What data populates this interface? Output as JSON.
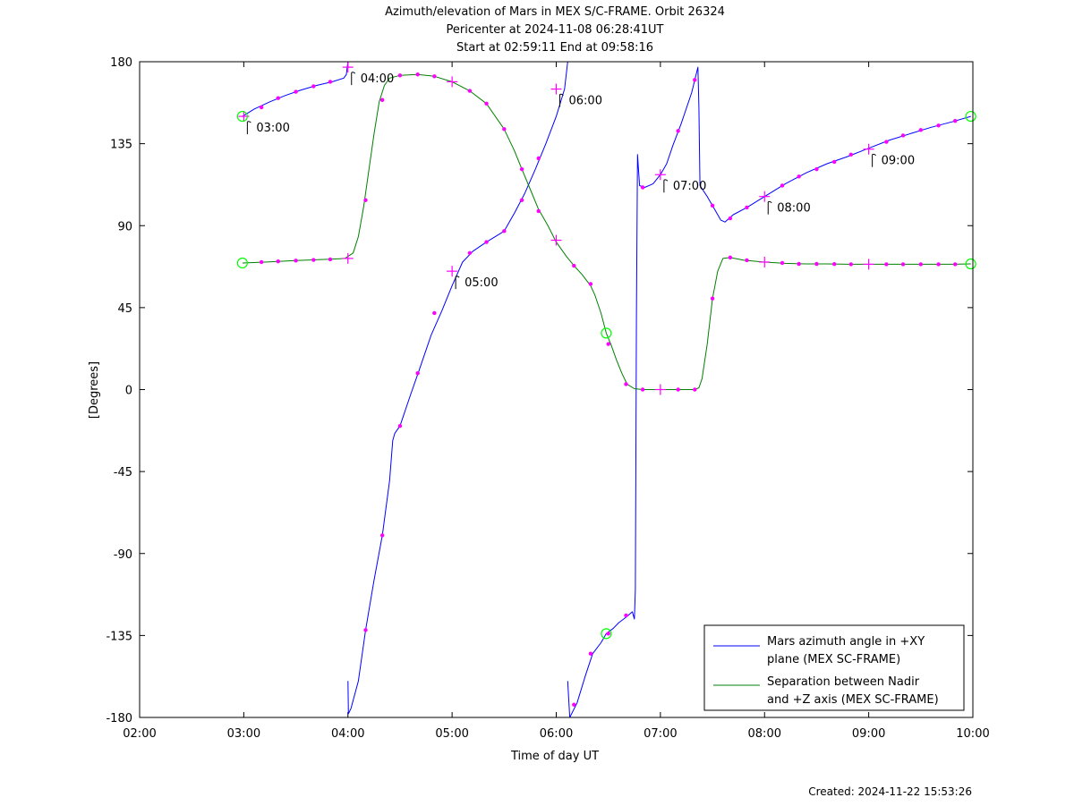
{
  "chart_data": {
    "type": "line",
    "title_lines": [
      "Azimuth/elevation of Mars in MEX S/C-FRAME.  Orbit 26324",
      "Pericenter at 2024-11-08 06:28:41UT",
      "Start at 02:59:11 End at 09:58:16"
    ],
    "xlabel": "Time of day UT",
    "ylabel": "[Degrees]",
    "footer": "Created: 2024-11-22 15:53:26",
    "xlim": [
      2.0,
      10.0
    ],
    "ylim": [
      -180,
      180
    ],
    "xticks": [
      {
        "v": 2.0,
        "label": "02:00"
      },
      {
        "v": 3.0,
        "label": "03:00"
      },
      {
        "v": 4.0,
        "label": "04:00"
      },
      {
        "v": 5.0,
        "label": "05:00"
      },
      {
        "v": 6.0,
        "label": "06:00"
      },
      {
        "v": 7.0,
        "label": "07:00"
      },
      {
        "v": 8.0,
        "label": "08:00"
      },
      {
        "v": 9.0,
        "label": "09:00"
      },
      {
        "v": 10.0,
        "label": "10:00"
      }
    ],
    "yticks": [
      {
        "v": 180,
        "label": "180"
      },
      {
        "v": 135,
        "label": "135"
      },
      {
        "v": 90,
        "label": "90"
      },
      {
        "v": 45,
        "label": "45"
      },
      {
        "v": 0,
        "label": "0"
      },
      {
        "v": -45,
        "label": "-45"
      },
      {
        "v": -90,
        "label": "-90"
      },
      {
        "v": -135,
        "label": "-135"
      },
      {
        "v": -180,
        "label": "-180"
      }
    ],
    "grid": false,
    "legend_position": "bottom-right",
    "colors": {
      "azimuth": "#0000ff",
      "separation": "#008000",
      "markers": "#ff00ff",
      "circles": "#00ff00"
    },
    "series": [
      {
        "name": "Mars azimuth angle in +XY\nplane (MEX SC-FRAME)",
        "legend_lines": [
          "Mars azimuth angle in +XY",
          "plane (MEX SC-FRAME)"
        ],
        "color": "#0000ff",
        "segments": [
          [
            [
              2.987,
              150
            ],
            [
              3.1,
              154
            ],
            [
              3.25,
              158
            ],
            [
              3.4,
              161.5
            ],
            [
              3.55,
              164.5
            ],
            [
              3.7,
              167
            ],
            [
              3.85,
              169
            ],
            [
              3.96,
              171
            ],
            [
              3.985,
              173
            ],
            [
              3.995,
              178
            ],
            [
              4.0,
              180
            ]
          ],
          [
            [
              4.0,
              -160
            ],
            [
              4.005,
              -178
            ],
            [
              4.03,
              -175
            ],
            [
              4.1,
              -160
            ],
            [
              4.17,
              -132
            ],
            [
              4.25,
              -105
            ],
            [
              4.33,
              -80
            ],
            [
              4.4,
              -50
            ],
            [
              4.43,
              -28
            ],
            [
              4.45,
              -24
            ],
            [
              4.5,
              -20
            ],
            [
              4.6,
              -3
            ],
            [
              4.68,
              10
            ],
            [
              4.8,
              30
            ],
            [
              4.9,
              43
            ],
            [
              5.0,
              57
            ],
            [
              5.1,
              70
            ],
            [
              5.2,
              76
            ],
            [
              5.33,
              81
            ],
            [
              5.5,
              87
            ],
            [
              5.6,
              97
            ],
            [
              5.7,
              108
            ],
            [
              5.8,
              121
            ],
            [
              5.9,
              135
            ],
            [
              6.0,
              150
            ],
            [
              6.08,
              165
            ],
            [
              6.11,
              180
            ]
          ],
          [
            [
              6.11,
              -160
            ],
            [
              6.13,
              -180
            ],
            [
              6.2,
              -172
            ],
            [
              6.28,
              -157
            ],
            [
              6.35,
              -145
            ],
            [
              6.43,
              -139
            ],
            [
              6.48,
              -134
            ],
            [
              6.55,
              -131
            ],
            [
              6.6,
              -128
            ],
            [
              6.67,
              -125
            ],
            [
              6.73,
              -122
            ],
            [
              6.75,
              -126
            ],
            [
              6.76,
              -110
            ],
            [
              6.77,
              40
            ],
            [
              6.78,
              129
            ],
            [
              6.8,
              112
            ],
            [
              6.85,
              111
            ],
            [
              6.93,
              113
            ],
            [
              7.0,
              118
            ],
            [
              7.06,
              124
            ],
            [
              7.12,
              134
            ],
            [
              7.2,
              146
            ],
            [
              7.3,
              163
            ],
            [
              7.33,
              170
            ],
            [
              7.36,
              177
            ],
            [
              7.37,
              155
            ],
            [
              7.38,
              112
            ],
            [
              7.45,
              106
            ],
            [
              7.5,
              101
            ],
            [
              7.58,
              93
            ],
            [
              7.62,
              92
            ],
            [
              7.7,
              96
            ],
            [
              7.83,
              100
            ],
            [
              8.0,
              106
            ],
            [
              8.2,
              113
            ],
            [
              8.4,
              119
            ],
            [
              8.6,
              124
            ],
            [
              8.8,
              128
            ],
            [
              9.0,
              132.5
            ],
            [
              9.2,
              137
            ],
            [
              9.4,
              140.5
            ],
            [
              9.6,
              144
            ],
            [
              9.8,
              147
            ],
            [
              9.98,
              150
            ]
          ]
        ]
      },
      {
        "name": "Separation between Nadir\nand +Z axis (MEX SC-FRAME)",
        "legend_lines": [
          "Separation between Nadir",
          "and +Z axis (MEX SC-FRAME)"
        ],
        "color": "#008000",
        "segments": [
          [
            [
              2.987,
              69.5
            ],
            [
              3.2,
              70
            ],
            [
              3.5,
              70.8
            ],
            [
              3.8,
              71.5
            ],
            [
              3.97,
              72
            ],
            [
              4.05,
              75
            ],
            [
              4.1,
              84
            ],
            [
              4.15,
              100
            ],
            [
              4.2,
              120
            ],
            [
              4.25,
              140
            ],
            [
              4.3,
              158
            ],
            [
              4.35,
              167
            ],
            [
              4.4,
              171
            ],
            [
              4.5,
              172.5
            ],
            [
              4.67,
              173
            ],
            [
              4.83,
              172
            ],
            [
              5.0,
              169
            ],
            [
              5.17,
              164
            ],
            [
              5.33,
              157
            ],
            [
              5.5,
              143
            ],
            [
              5.6,
              131
            ],
            [
              5.67,
              121
            ],
            [
              5.75,
              110
            ],
            [
              5.83,
              99
            ],
            [
              5.92,
              90
            ],
            [
              6.0,
              81
            ],
            [
              6.1,
              73
            ],
            [
              6.17,
              68
            ],
            [
              6.25,
              63
            ],
            [
              6.33,
              57
            ],
            [
              6.37,
              52
            ],
            [
              6.43,
              42
            ],
            [
              6.48,
              31
            ],
            [
              6.53,
              24
            ],
            [
              6.58,
              16
            ],
            [
              6.63,
              9
            ],
            [
              6.68,
              3
            ],
            [
              6.75,
              0.5
            ],
            [
              6.83,
              0
            ],
            [
              7.0,
              0
            ],
            [
              7.2,
              0
            ],
            [
              7.33,
              0
            ],
            [
              7.37,
              1
            ],
            [
              7.4,
              6
            ],
            [
              7.45,
              25
            ],
            [
              7.5,
              50
            ],
            [
              7.55,
              65
            ],
            [
              7.6,
              72
            ],
            [
              7.67,
              72.5
            ],
            [
              7.8,
              71
            ],
            [
              8.0,
              70
            ],
            [
              8.2,
              69.3
            ],
            [
              8.4,
              69
            ],
            [
              8.6,
              69
            ],
            [
              8.8,
              68.8
            ],
            [
              9.0,
              68.8
            ],
            [
              9.2,
              68.8
            ],
            [
              9.4,
              68.8
            ],
            [
              9.6,
              68.8
            ],
            [
              9.8,
              68.8
            ],
            [
              9.98,
              69
            ]
          ]
        ]
      }
    ],
    "hour_marks": [
      {
        "label": "03:00",
        "x": 3.0,
        "y": 150
      },
      {
        "label": "04:00",
        "x": 4.0,
        "y": 177
      },
      {
        "label": "05:00",
        "x": 5.0,
        "y": 65
      },
      {
        "label": "06:00",
        "x": 6.0,
        "y": 165
      },
      {
        "label": "07:00",
        "x": 7.0,
        "y": 118
      },
      {
        "label": "08:00",
        "x": 8.0,
        "y": 106
      },
      {
        "label": "09:00",
        "x": 9.0,
        "y": 132
      }
    ],
    "plus_marks": [
      {
        "x": 4.0,
        "y": 72
      },
      {
        "x": 5.0,
        "y": 169
      },
      {
        "x": 6.0,
        "y": 82
      },
      {
        "x": 7.0,
        "y": 0
      },
      {
        "x": 8.0,
        "y": 70
      },
      {
        "x": 9.0,
        "y": 68.8
      }
    ],
    "dot_marks": [
      {
        "x": 3.17,
        "y": 155
      },
      {
        "x": 3.33,
        "y": 160
      },
      {
        "x": 3.5,
        "y": 163.5
      },
      {
        "x": 3.67,
        "y": 166.5
      },
      {
        "x": 3.83,
        "y": 169
      },
      {
        "x": 4.17,
        "y": -132
      },
      {
        "x": 4.33,
        "y": -80
      },
      {
        "x": 4.5,
        "y": -20
      },
      {
        "x": 4.67,
        "y": 9
      },
      {
        "x": 4.83,
        "y": 42
      },
      {
        "x": 5.17,
        "y": 75
      },
      {
        "x": 5.33,
        "y": 81
      },
      {
        "x": 5.5,
        "y": 87
      },
      {
        "x": 5.67,
        "y": 104
      },
      {
        "x": 5.83,
        "y": 127
      },
      {
        "x": 6.17,
        "y": -173
      },
      {
        "x": 6.33,
        "y": -145
      },
      {
        "x": 6.5,
        "y": -134
      },
      {
        "x": 6.67,
        "y": -124
      },
      {
        "x": 6.83,
        "y": 111
      },
      {
        "x": 7.17,
        "y": 142
      },
      {
        "x": 7.33,
        "y": 170
      },
      {
        "x": 7.5,
        "y": 101
      },
      {
        "x": 7.67,
        "y": 94
      },
      {
        "x": 7.83,
        "y": 100
      },
      {
        "x": 8.17,
        "y": 112
      },
      {
        "x": 8.33,
        "y": 117
      },
      {
        "x": 8.5,
        "y": 121
      },
      {
        "x": 8.67,
        "y": 125
      },
      {
        "x": 8.83,
        "y": 129
      },
      {
        "x": 9.17,
        "y": 136
      },
      {
        "x": 9.33,
        "y": 139.5
      },
      {
        "x": 9.5,
        "y": 142.5
      },
      {
        "x": 9.67,
        "y": 145
      },
      {
        "x": 9.83,
        "y": 147.5
      },
      {
        "x": 3.17,
        "y": 70
      },
      {
        "x": 3.33,
        "y": 70.4
      },
      {
        "x": 3.5,
        "y": 70.8
      },
      {
        "x": 3.67,
        "y": 71.2
      },
      {
        "x": 3.83,
        "y": 71.5
      },
      {
        "x": 4.17,
        "y": 104
      },
      {
        "x": 4.33,
        "y": 159
      },
      {
        "x": 4.5,
        "y": 172.5
      },
      {
        "x": 4.67,
        "y": 173
      },
      {
        "x": 4.83,
        "y": 172
      },
      {
        "x": 5.17,
        "y": 164
      },
      {
        "x": 5.33,
        "y": 157
      },
      {
        "x": 5.5,
        "y": 143
      },
      {
        "x": 5.67,
        "y": 121
      },
      {
        "x": 5.83,
        "y": 98
      },
      {
        "x": 6.17,
        "y": 68
      },
      {
        "x": 6.33,
        "y": 58
      },
      {
        "x": 6.5,
        "y": 25
      },
      {
        "x": 6.67,
        "y": 3
      },
      {
        "x": 6.83,
        "y": 0
      },
      {
        "x": 7.17,
        "y": 0
      },
      {
        "x": 7.33,
        "y": 0
      },
      {
        "x": 7.5,
        "y": 50
      },
      {
        "x": 7.67,
        "y": 72.5
      },
      {
        "x": 7.83,
        "y": 71
      },
      {
        "x": 8.17,
        "y": 69.5
      },
      {
        "x": 8.33,
        "y": 69
      },
      {
        "x": 8.5,
        "y": 69
      },
      {
        "x": 8.67,
        "y": 68.9
      },
      {
        "x": 8.83,
        "y": 68.8
      },
      {
        "x": 9.17,
        "y": 68.8
      },
      {
        "x": 9.33,
        "y": 68.8
      },
      {
        "x": 9.5,
        "y": 68.8
      },
      {
        "x": 9.67,
        "y": 68.8
      },
      {
        "x": 9.83,
        "y": 68.8
      }
    ],
    "circle_marks": [
      {
        "x": 2.987,
        "y": 150
      },
      {
        "x": 2.987,
        "y": 69.5
      },
      {
        "x": 9.98,
        "y": 150
      },
      {
        "x": 9.98,
        "y": 69
      },
      {
        "x": 6.48,
        "y": 31
      },
      {
        "x": 6.48,
        "y": -134
      }
    ]
  }
}
